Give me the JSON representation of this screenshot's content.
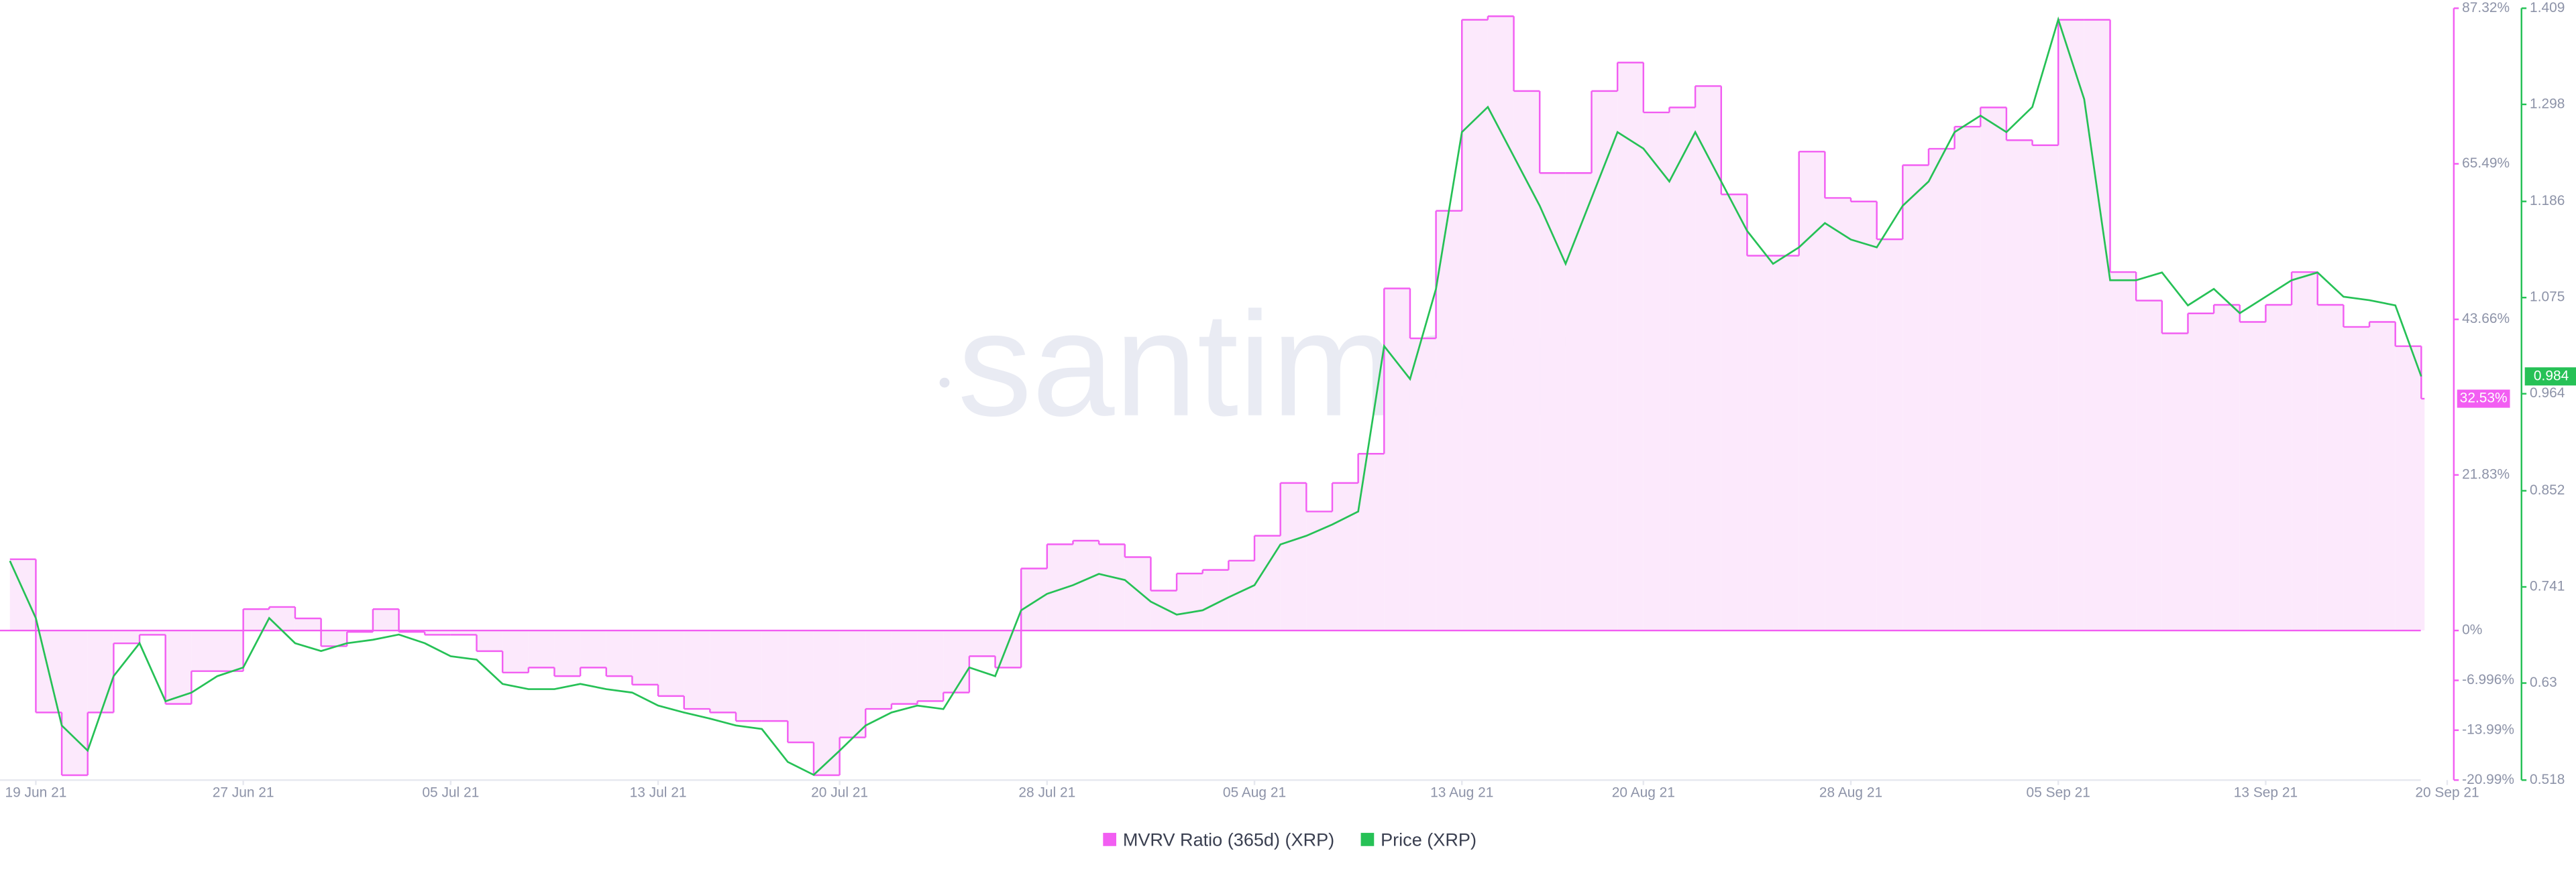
{
  "chart_data": {
    "type": "line",
    "watermark": "santiment",
    "x": [
      "2021-06-18",
      "2021-06-19",
      "2021-06-20",
      "2021-06-21",
      "2021-06-22",
      "2021-06-23",
      "2021-06-24",
      "2021-06-25",
      "2021-06-26",
      "2021-06-27",
      "2021-06-28",
      "2021-06-29",
      "2021-06-30",
      "2021-07-01",
      "2021-07-02",
      "2021-07-03",
      "2021-07-04",
      "2021-07-05",
      "2021-07-06",
      "2021-07-07",
      "2021-07-08",
      "2021-07-09",
      "2021-07-10",
      "2021-07-11",
      "2021-07-12",
      "2021-07-13",
      "2021-07-14",
      "2021-07-15",
      "2021-07-16",
      "2021-07-17",
      "2021-07-18",
      "2021-07-19",
      "2021-07-20",
      "2021-07-21",
      "2021-07-22",
      "2021-07-23",
      "2021-07-24",
      "2021-07-25",
      "2021-07-26",
      "2021-07-27",
      "2021-07-28",
      "2021-07-29",
      "2021-07-30",
      "2021-07-31",
      "2021-08-01",
      "2021-08-02",
      "2021-08-03",
      "2021-08-04",
      "2021-08-05",
      "2021-08-06",
      "2021-08-07",
      "2021-08-08",
      "2021-08-09",
      "2021-08-10",
      "2021-08-11",
      "2021-08-12",
      "2021-08-13",
      "2021-08-14",
      "2021-08-15",
      "2021-08-16",
      "2021-08-17",
      "2021-08-18",
      "2021-08-19",
      "2021-08-20",
      "2021-08-21",
      "2021-08-22",
      "2021-08-23",
      "2021-08-24",
      "2021-08-25",
      "2021-08-26",
      "2021-08-27",
      "2021-08-28",
      "2021-08-29",
      "2021-08-30",
      "2021-08-31",
      "2021-09-01",
      "2021-09-02",
      "2021-09-03",
      "2021-09-04",
      "2021-09-05",
      "2021-09-06",
      "2021-09-07",
      "2021-09-08",
      "2021-09-09",
      "2021-09-10",
      "2021-09-11",
      "2021-09-12",
      "2021-09-13",
      "2021-09-14",
      "2021-09-15",
      "2021-09-16",
      "2021-09-17",
      "2021-09-18",
      "2021-09-19"
    ],
    "xlim": [
      "2021-06-18",
      "2021-09-20"
    ],
    "xticks": [
      {
        "value": "2021-06-19",
        "label": "19 Jun 21"
      },
      {
        "value": "2021-06-27",
        "label": "27 Jun 21"
      },
      {
        "value": "2021-07-05",
        "label": "05 Jul 21"
      },
      {
        "value": "2021-07-13",
        "label": "13 Jul 21"
      },
      {
        "value": "2021-07-20",
        "label": "20 Jul 21"
      },
      {
        "value": "2021-07-28",
        "label": "28 Jul 21"
      },
      {
        "value": "2021-08-05",
        "label": "05 Aug 21"
      },
      {
        "value": "2021-08-13",
        "label": "13 Aug 21"
      },
      {
        "value": "2021-08-20",
        "label": "20 Aug 21"
      },
      {
        "value": "2021-08-28",
        "label": "28 Aug 21"
      },
      {
        "value": "2021-09-05",
        "label": "05 Sep 21"
      },
      {
        "value": "2021-09-13",
        "label": "13 Sep 21"
      },
      {
        "value": "2021-09-20",
        "label": "20 Sep 21"
      }
    ],
    "ylim": [
      -20.99,
      87.32
    ],
    "yticks": [
      {
        "value": 87.32,
        "label": "87.32%"
      },
      {
        "value": 65.49,
        "label": "65.49%"
      },
      {
        "value": 43.66,
        "label": "43.66%"
      },
      {
        "value": 21.83,
        "label": "21.83%"
      },
      {
        "value": 0,
        "label": "0%"
      },
      {
        "value": -6.996,
        "label": "-6.996%"
      },
      {
        "value": -13.99,
        "label": "-13.99%"
      },
      {
        "value": -20.99,
        "label": "-20.99%"
      }
    ],
    "y2lim": [
      0.518,
      1.409
    ],
    "y2ticks": [
      1.409,
      1.298,
      1.186,
      1.075,
      0.964,
      0.852,
      0.741,
      0.63,
      0.518
    ],
    "series": [
      {
        "name": "MVRV Ratio (365d) (XRP)",
        "color": "#f25ef2",
        "fill": "#fce9fc",
        "step": true,
        "values": [
          10,
          -11.5,
          -20.3,
          -11.5,
          -1.8,
          -0.6,
          -10.3,
          -5.7,
          -5.7,
          3.0,
          3.3,
          1.7,
          -2.2,
          -0.2,
          3.0,
          -0.2,
          -0.6,
          -0.6,
          -2.9,
          -5.9,
          -5.2,
          -6.4,
          -5.2,
          -6.4,
          -7.6,
          -9.2,
          -11.0,
          -11.5,
          -12.7,
          -12.7,
          -15.7,
          -20.3,
          -15.0,
          -11.0,
          -10.3,
          -9.9,
          -8.7,
          -3.6,
          -5.2,
          8.7,
          12.1,
          12.6,
          12.1,
          10.3,
          5.6,
          8.0,
          8.5,
          9.8,
          13.3,
          20.7,
          16.7,
          20.7,
          24.8,
          48.0,
          41.0,
          58.9,
          85.7,
          86.2,
          75.7,
          64.2,
          64.2,
          75.7,
          79.7,
          72.7,
          73.4,
          76.4,
          61.2,
          52.6,
          52.6,
          67.2,
          60.7,
          60.2,
          54.9,
          65.3,
          67.6,
          70.7,
          73.4,
          68.8,
          68.1,
          85.7,
          85.7,
          50.3,
          46.3,
          41.7,
          44.5,
          45.7,
          43.3,
          45.7,
          50.3,
          45.7,
          42.6,
          43.3,
          39.9,
          32.53
        ],
        "last_label": "32.53%"
      },
      {
        "name": "Price (XRP)",
        "color": "#26c156",
        "axis": "y2",
        "values": [
          0.771,
          0.705,
          0.581,
          0.552,
          0.638,
          0.676,
          0.609,
          0.619,
          0.638,
          0.648,
          0.705,
          0.676,
          0.667,
          0.676,
          0.68,
          0.686,
          0.676,
          0.661,
          0.657,
          0.629,
          0.623,
          0.623,
          0.629,
          0.623,
          0.619,
          0.604,
          0.596,
          0.589,
          0.581,
          0.577,
          0.539,
          0.524,
          0.552,
          0.581,
          0.596,
          0.604,
          0.6,
          0.648,
          0.638,
          0.714,
          0.733,
          0.743,
          0.756,
          0.749,
          0.724,
          0.709,
          0.714,
          0.729,
          0.743,
          0.79,
          0.8,
          0.813,
          0.828,
          1.019,
          0.981,
          1.085,
          1.266,
          1.295,
          1.238,
          1.181,
          1.114,
          1.19,
          1.266,
          1.247,
          1.209,
          1.266,
          1.209,
          1.152,
          1.114,
          1.133,
          1.161,
          1.142,
          1.133,
          1.181,
          1.209,
          1.266,
          1.285,
          1.266,
          1.295,
          1.396,
          1.304,
          1.095,
          1.095,
          1.104,
          1.066,
          1.085,
          1.057,
          1.076,
          1.095,
          1.104,
          1.076,
          1.072,
          1.066,
          0.984
        ],
        "last_label": "0.984"
      }
    ]
  }
}
